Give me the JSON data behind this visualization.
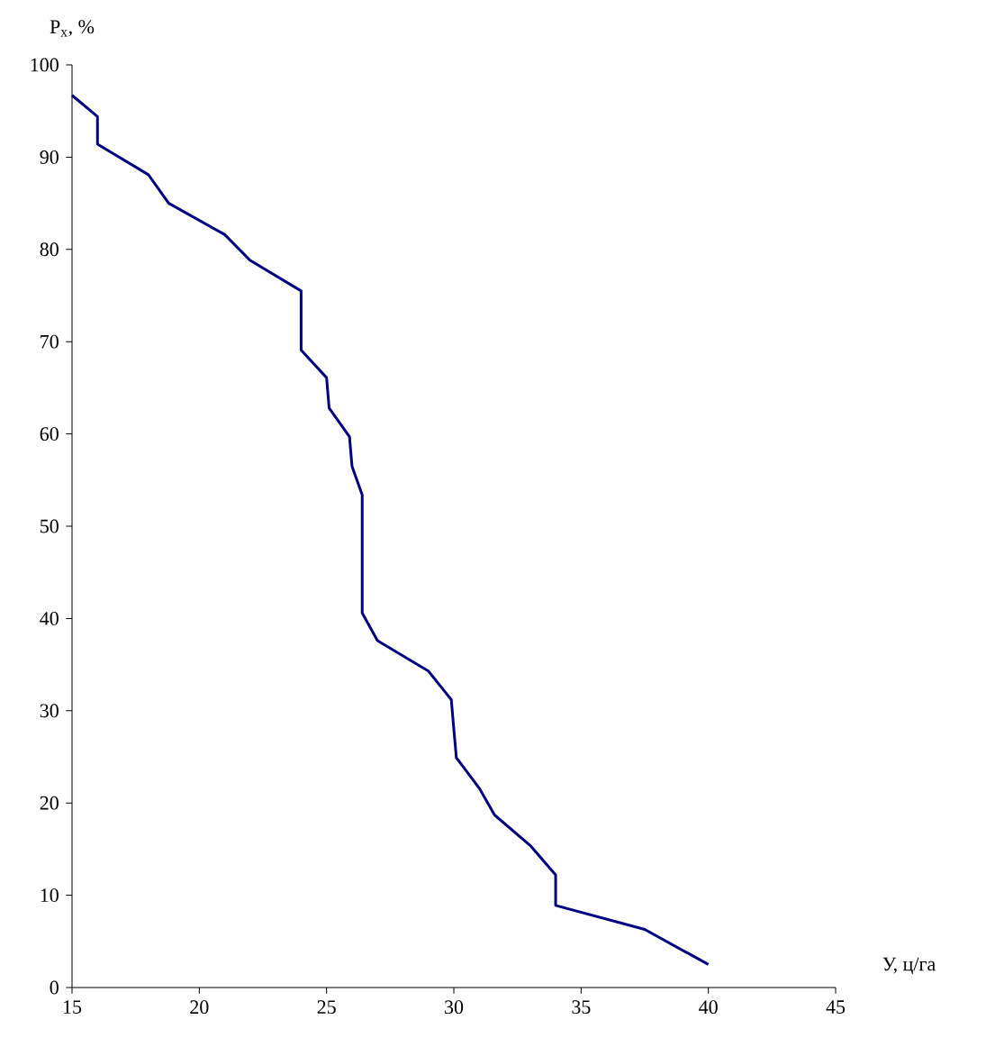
{
  "chart_data": {
    "type": "line",
    "xlabel": "У, ц/га",
    "ylabel": "P$_{x}$, %",
    "xlim": [
      15,
      45
    ],
    "xticks": [
      15,
      20,
      25,
      30,
      35,
      40,
      45
    ],
    "ylim": [
      0,
      100
    ],
    "yticks": [
      0,
      10,
      20,
      30,
      40,
      50,
      60,
      70,
      80,
      90,
      100
    ],
    "grid": false,
    "marker": "none",
    "line_style": "solid",
    "series": [
      {
        "color": "#000080",
        "x": [
          15,
          16,
          16,
          18,
          18.8,
          21,
          22,
          24,
          24,
          25,
          25.1,
          25.9,
          26,
          26.4,
          26.4,
          27,
          29,
          29.9,
          30,
          30.1,
          31,
          31.6,
          33,
          34,
          34,
          37.5,
          40
        ],
        "values": [
          96.7,
          94.4,
          91.4,
          88.1,
          85,
          81.6,
          78.8,
          75.5,
          69.1,
          66.1,
          62.8,
          59.7,
          56.5,
          53.4,
          40.6,
          37.6,
          34.3,
          31.2,
          28,
          24.9,
          21.6,
          18.7,
          15.4,
          12.2,
          8.9,
          6.3,
          2.5
        ]
      }
    ]
  }
}
